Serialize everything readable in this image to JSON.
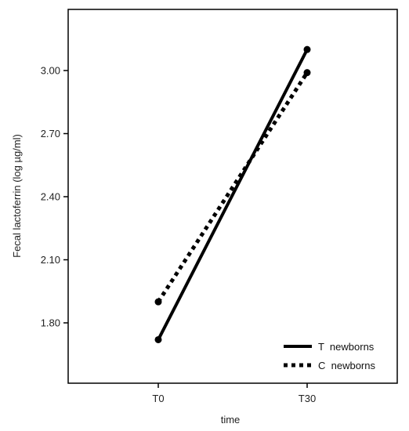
{
  "chart_data": {
    "type": "line",
    "title": "",
    "xlabel": "time",
    "ylabel": "Fecal lactoferrin (log µg/ml)",
    "categories": [
      "T0",
      "T30"
    ],
    "ylim": [
      1.6,
      3.33
    ],
    "yticks": [
      "1.80",
      "2.10",
      "2.40",
      "2.70",
      "3.00"
    ],
    "grid": false,
    "legend_position": "bottom-right",
    "series": [
      {
        "name": "T  newborns",
        "values": [
          1.72,
          3.1
        ],
        "style": "solid",
        "color": "#000000"
      },
      {
        "name": "C  newborns",
        "values": [
          1.9,
          2.99
        ],
        "style": "dotted",
        "color": "#000000"
      }
    ]
  }
}
